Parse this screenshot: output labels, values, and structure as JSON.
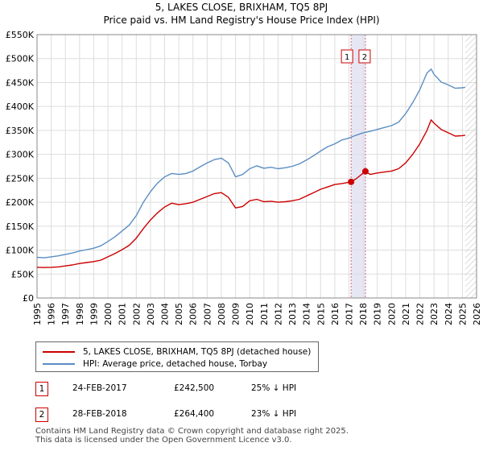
{
  "title": "5, LAKES CLOSE, BRIXHAM, TQ5 8PJ",
  "subtitle": "Price paid vs. HM Land Registry's House Price Index (HPI)",
  "colors": {
    "property": "#cc0000",
    "hpi": "#5b8ec2",
    "grid": "#dddddd",
    "marker_band": "#ddddee",
    "marker_line": "#cc6688"
  },
  "chart_data": {
    "type": "line",
    "xlim": [
      1995,
      2026
    ],
    "ylim": [
      0,
      550000
    ],
    "x_ticks": [
      "1995",
      "1996",
      "1997",
      "1998",
      "1999",
      "2000",
      "2001",
      "2002",
      "2003",
      "2004",
      "2005",
      "2006",
      "2007",
      "2008",
      "2009",
      "2010",
      "2011",
      "2012",
      "2013",
      "2014",
      "2015",
      "2016",
      "2017",
      "2018",
      "2019",
      "2020",
      "2021",
      "2022",
      "2023",
      "2024",
      "2025",
      "2026"
    ],
    "y_ticks": [
      {
        "value": 0,
        "label": "£0"
      },
      {
        "value": 50000,
        "label": "£50K"
      },
      {
        "value": 100000,
        "label": "£100K"
      },
      {
        "value": 150000,
        "label": "£150K"
      },
      {
        "value": 200000,
        "label": "£200K"
      },
      {
        "value": 250000,
        "label": "£250K"
      },
      {
        "value": 300000,
        "label": "£300K"
      },
      {
        "value": 350000,
        "label": "£350K"
      },
      {
        "value": 400000,
        "label": "£400K"
      },
      {
        "value": 450000,
        "label": "£450K"
      },
      {
        "value": 500000,
        "label": "£500K"
      },
      {
        "value": 550000,
        "label": "£550K"
      }
    ],
    "forecast_start": 2025.2,
    "series": [
      {
        "name": "5, LAKES CLOSE, BRIXHAM, TQ5 8PJ (detached house)",
        "color": "#cc0000",
        "x": [
          1995.0,
          1995.5,
          1996.0,
          1996.5,
          1997.0,
          1997.5,
          1998.0,
          1998.5,
          1999.0,
          1999.5,
          2000.0,
          2000.5,
          2001.0,
          2001.5,
          2002.0,
          2002.5,
          2003.0,
          2003.5,
          2004.0,
          2004.5,
          2005.0,
          2005.5,
          2006.0,
          2006.5,
          2007.0,
          2007.5,
          2008.0,
          2008.5,
          2009.0,
          2009.5,
          2010.0,
          2010.5,
          2011.0,
          2011.5,
          2012.0,
          2012.5,
          2013.0,
          2013.5,
          2014.0,
          2014.5,
          2015.0,
          2015.5,
          2016.0,
          2016.5,
          2017.15,
          2017.5,
          2018.16,
          2018.5,
          2019.0,
          2019.5,
          2020.0,
          2020.5,
          2021.0,
          2021.5,
          2022.0,
          2022.5,
          2022.8,
          2023.0,
          2023.5,
          2024.0,
          2024.5,
          2025.0,
          2025.2
        ],
        "y": [
          64000,
          63500,
          64000,
          65000,
          67000,
          69000,
          72000,
          74000,
          76000,
          79000,
          86000,
          93000,
          101000,
          110000,
          125000,
          145000,
          163000,
          178000,
          190000,
          198000,
          195000,
          197000,
          200000,
          206000,
          212000,
          218000,
          220000,
          210000,
          188000,
          191000,
          203000,
          206000,
          201000,
          202000,
          200000,
          201000,
          203000,
          206000,
          213000,
          220000,
          227000,
          232000,
          237000,
          239000,
          242500,
          249000,
          264400,
          258000,
          261000,
          263000,
          265000,
          270000,
          282000,
          300000,
          322000,
          350000,
          372000,
          365000,
          352000,
          345000,
          338000,
          339000,
          340000
        ]
      },
      {
        "name": "HPI: Average price, detached house, Torbay",
        "color": "#5b8ec2",
        "x": [
          1995.0,
          1995.5,
          1996.0,
          1996.5,
          1997.0,
          1997.5,
          1998.0,
          1998.5,
          1999.0,
          1999.5,
          2000.0,
          2000.5,
          2001.0,
          2001.5,
          2002.0,
          2002.5,
          2003.0,
          2003.5,
          2004.0,
          2004.5,
          2005.0,
          2005.5,
          2006.0,
          2006.5,
          2007.0,
          2007.5,
          2008.0,
          2008.5,
          2009.0,
          2009.5,
          2010.0,
          2010.5,
          2011.0,
          2011.5,
          2012.0,
          2012.5,
          2013.0,
          2013.5,
          2014.0,
          2014.5,
          2015.0,
          2015.5,
          2016.0,
          2016.5,
          2017.0,
          2017.5,
          2018.0,
          2018.5,
          2019.0,
          2019.5,
          2020.0,
          2020.5,
          2021.0,
          2021.5,
          2022.0,
          2022.5,
          2022.8,
          2023.0,
          2023.5,
          2024.0,
          2024.5,
          2025.0,
          2025.2
        ],
        "y": [
          85000,
          84000,
          86000,
          88000,
          91000,
          94000,
          98000,
          101000,
          104000,
          109000,
          118000,
          128000,
          140000,
          152000,
          172000,
          200000,
          222000,
          240000,
          253000,
          260000,
          258000,
          260000,
          265000,
          274000,
          282000,
          289000,
          292000,
          282000,
          253000,
          258000,
          270000,
          276000,
          271000,
          273000,
          270000,
          272000,
          275000,
          280000,
          288000,
          297000,
          307000,
          316000,
          322000,
          330000,
          334000,
          340000,
          345000,
          348000,
          352000,
          356000,
          360000,
          367000,
          385000,
          408000,
          435000,
          470000,
          478000,
          467000,
          451000,
          445000,
          438000,
          439000,
          440000
        ]
      }
    ],
    "markers": [
      {
        "label": "1",
        "x": 2017.15,
        "y": 242500
      },
      {
        "label": "2",
        "x": 2018.16,
        "y": 264400
      }
    ]
  },
  "legend": {
    "property_label": "5, LAKES CLOSE, BRIXHAM, TQ5 8PJ (detached house)",
    "hpi_label": "HPI: Average price, detached house, Torbay"
  },
  "transactions": [
    {
      "badge": "1",
      "date": "24-FEB-2017",
      "price": "£242,500",
      "hpi": "25% ↓ HPI"
    },
    {
      "badge": "2",
      "date": "28-FEB-2018",
      "price": "£264,400",
      "hpi": "23% ↓ HPI"
    }
  ],
  "footer": {
    "line1": "Contains HM Land Registry data © Crown copyright and database right 2025.",
    "line2": "This data is licensed under the Open Government Licence v3.0."
  }
}
